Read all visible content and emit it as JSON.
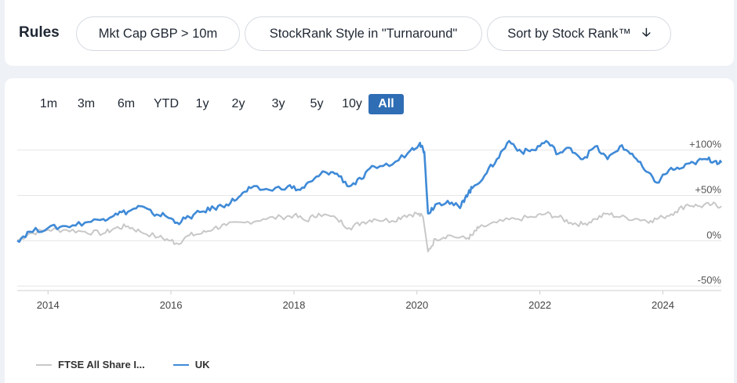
{
  "rules": {
    "label": "Rules",
    "filters": [
      "Mkt Cap GBP > 10m",
      "StockRank Style in \"Turnaround\""
    ],
    "sort_label": "Sort by Stock Rank™",
    "sort_icon": "arrow-down-icon"
  },
  "ranges": {
    "items": [
      "1m",
      "3m",
      "6m",
      "YTD",
      "1y",
      "2y",
      "3y",
      "5y",
      "10y",
      "All"
    ],
    "active": "All",
    "active_color": "#2f6db5"
  },
  "chart_data": {
    "type": "line",
    "x_ticks": [
      "2014",
      "2016",
      "2018",
      "2020",
      "2022",
      "2024"
    ],
    "y_ticks": [
      "+100%",
      "+50%",
      "0%",
      "-50%"
    ],
    "ylim": [
      -55,
      110
    ],
    "xlim": [
      2013.5,
      2024.95
    ],
    "grid": true,
    "legend_position": "bottom-left",
    "series": [
      {
        "name": "FTSE All Share I...",
        "color": "#c8c8c8",
        "points": [
          [
            2013.5,
            0
          ],
          [
            2013.7,
            8
          ],
          [
            2014.0,
            12
          ],
          [
            2014.3,
            12
          ],
          [
            2014.6,
            10
          ],
          [
            2014.9,
            8
          ],
          [
            2015.1,
            14
          ],
          [
            2015.3,
            16
          ],
          [
            2015.5,
            10
          ],
          [
            2015.8,
            4
          ],
          [
            2016.0,
            0
          ],
          [
            2016.1,
            -3
          ],
          [
            2016.3,
            6
          ],
          [
            2016.5,
            8
          ],
          [
            2016.7,
            14
          ],
          [
            2016.9,
            17
          ],
          [
            2017.2,
            20
          ],
          [
            2017.5,
            24
          ],
          [
            2017.8,
            26
          ],
          [
            2018.0,
            28
          ],
          [
            2018.2,
            22
          ],
          [
            2018.4,
            30
          ],
          [
            2018.7,
            24
          ],
          [
            2018.9,
            14
          ],
          [
            2019.1,
            20
          ],
          [
            2019.3,
            24
          ],
          [
            2019.6,
            22
          ],
          [
            2019.8,
            28
          ],
          [
            2020.0,
            30
          ],
          [
            2020.1,
            26
          ],
          [
            2020.18,
            -12
          ],
          [
            2020.3,
            2
          ],
          [
            2020.5,
            6
          ],
          [
            2020.8,
            2
          ],
          [
            2020.9,
            6
          ],
          [
            2021.0,
            14
          ],
          [
            2021.3,
            20
          ],
          [
            2021.6,
            24
          ],
          [
            2021.9,
            26
          ],
          [
            2022.1,
            30
          ],
          [
            2022.3,
            26
          ],
          [
            2022.5,
            20
          ],
          [
            2022.7,
            18
          ],
          [
            2022.9,
            24
          ],
          [
            2023.1,
            30
          ],
          [
            2023.3,
            26
          ],
          [
            2023.6,
            24
          ],
          [
            2023.8,
            22
          ],
          [
            2024.0,
            26
          ],
          [
            2024.2,
            32
          ],
          [
            2024.4,
            40
          ],
          [
            2024.6,
            38
          ],
          [
            2024.8,
            40
          ],
          [
            2024.95,
            38
          ]
        ]
      },
      {
        "name": "UK",
        "color": "#3f8ad7",
        "points": [
          [
            2013.5,
            0
          ],
          [
            2013.7,
            10
          ],
          [
            2014.0,
            14
          ],
          [
            2014.3,
            16
          ],
          [
            2014.6,
            20
          ],
          [
            2014.9,
            24
          ],
          [
            2015.1,
            30
          ],
          [
            2015.3,
            32
          ],
          [
            2015.5,
            38
          ],
          [
            2015.7,
            30
          ],
          [
            2015.9,
            28
          ],
          [
            2016.1,
            20
          ],
          [
            2016.3,
            26
          ],
          [
            2016.5,
            32
          ],
          [
            2016.7,
            36
          ],
          [
            2016.9,
            40
          ],
          [
            2017.1,
            48
          ],
          [
            2017.3,
            58
          ],
          [
            2017.6,
            56
          ],
          [
            2017.9,
            60
          ],
          [
            2018.1,
            56
          ],
          [
            2018.3,
            66
          ],
          [
            2018.5,
            76
          ],
          [
            2018.7,
            74
          ],
          [
            2018.9,
            60
          ],
          [
            2019.1,
            68
          ],
          [
            2019.3,
            82
          ],
          [
            2019.6,
            84
          ],
          [
            2019.9,
            100
          ],
          [
            2020.05,
            108
          ],
          [
            2020.12,
            98
          ],
          [
            2020.18,
            30
          ],
          [
            2020.3,
            40
          ],
          [
            2020.5,
            44
          ],
          [
            2020.7,
            36
          ],
          [
            2020.8,
            50
          ],
          [
            2020.9,
            58
          ],
          [
            2021.1,
            72
          ],
          [
            2021.3,
            90
          ],
          [
            2021.5,
            110
          ],
          [
            2021.7,
            98
          ],
          [
            2021.9,
            100
          ],
          [
            2022.1,
            110
          ],
          [
            2022.3,
            96
          ],
          [
            2022.5,
            102
          ],
          [
            2022.7,
            90
          ],
          [
            2022.9,
            104
          ],
          [
            2023.1,
            90
          ],
          [
            2023.3,
            104
          ],
          [
            2023.5,
            96
          ],
          [
            2023.7,
            78
          ],
          [
            2023.9,
            64
          ],
          [
            2024.1,
            78
          ],
          [
            2024.3,
            80
          ],
          [
            2024.5,
            86
          ],
          [
            2024.7,
            90
          ],
          [
            2024.85,
            88
          ],
          [
            2024.95,
            86
          ]
        ]
      }
    ]
  }
}
